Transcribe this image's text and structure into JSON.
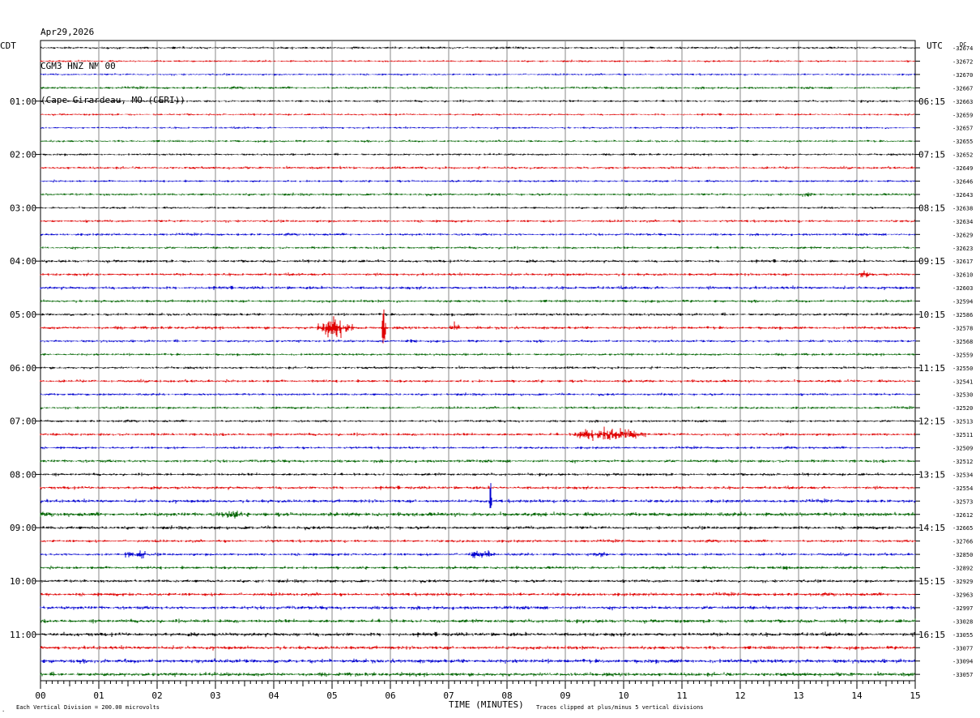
{
  "header": {
    "date": "Apr29,2026",
    "station": "CGM3 HNZ NM 00",
    "location": "(Cape Girardeau, MO (CERI))"
  },
  "left_tz": "CDT",
  "right_tz": "UTC",
  "dc_label": "DC",
  "footer": {
    "scale_note": "Each Vertical Division =  200.00 microvolts",
    "xlabel": "TIME (MINUTES)",
    "clip_note": "Traces clipped at plus/minus 5 vertical divisions"
  },
  "colors": [
    "#000000",
    "#e00000",
    "#0000d0",
    "#006400"
  ],
  "chart_data": {
    "type": "line",
    "xlabel": "TIME (MINUTES)",
    "xlim": [
      0,
      15
    ],
    "x_ticks": [
      "00",
      "01",
      "02",
      "03",
      "04",
      "05",
      "06",
      "07",
      "08",
      "09",
      "10",
      "11",
      "12",
      "13",
      "14",
      "15"
    ],
    "rows_per_hour": 4,
    "left_hour_labels": [
      "01:00",
      "02:00",
      "03:00",
      "04:00",
      "05:00",
      "06:00",
      "07:00",
      "08:00",
      "09:00",
      "10:00",
      "11:00"
    ],
    "right_hour_labels": [
      "06:15",
      "07:15",
      "08:15",
      "09:15",
      "10:15",
      "11:15",
      "12:15",
      "13:15",
      "14:15",
      "15:15",
      "16:15"
    ],
    "dc_offsets": [
      "-32674",
      "-32672",
      "-32670",
      "-32667",
      "-32663",
      "-32659",
      "-32657",
      "-32655",
      "-32652",
      "-32649",
      "-32646",
      "-32643",
      "-32638",
      "-32634",
      "-32629",
      "-32623",
      "-32617",
      "-32610",
      "-32603",
      "-32594",
      "-32586",
      "-32578",
      "-32568",
      "-32559",
      "-32550",
      "-32541",
      "-32530",
      "-32520",
      "-32513",
      "-32511",
      "-32509",
      "-32512",
      "-32534",
      "-32554",
      "-32573",
      "-32612",
      "-32665",
      "-32766",
      "-32850",
      "-32892",
      "-32929",
      "-32963",
      "-32997",
      "-33028",
      "-33055",
      "-33077",
      "-33094",
      "-33057"
    ],
    "noise": [
      0.9,
      0.8,
      0.8,
      1.0,
      0.9,
      0.8,
      0.8,
      0.9,
      0.9,
      1.0,
      0.9,
      1.0,
      0.9,
      1.0,
      1.0,
      1.0,
      1.1,
      1.1,
      1.2,
      1.1,
      1.1,
      1.2,
      1.0,
      1.0,
      1.0,
      1.1,
      1.0,
      1.0,
      1.0,
      1.1,
      1.0,
      1.2,
      1.1,
      1.2,
      1.3,
      1.6,
      1.3,
      1.1,
      1.1,
      1.2,
      1.2,
      1.3,
      1.4,
      1.4,
      1.5,
      1.4,
      1.6,
      1.5
    ],
    "events": [
      {
        "row": 21,
        "start": 4.75,
        "end": 5.35,
        "amp": 12
      },
      {
        "row": 21,
        "start": 5.85,
        "end": 5.92,
        "amp": 38
      },
      {
        "row": 21,
        "start": 7.0,
        "end": 7.2,
        "amp": 6
      },
      {
        "row": 22,
        "start": 6.2,
        "end": 6.5,
        "amp": 3
      },
      {
        "row": 29,
        "start": 9.1,
        "end": 10.4,
        "amp": 8
      },
      {
        "row": 34,
        "start": 7.7,
        "end": 7.74,
        "amp": 30
      },
      {
        "row": 35,
        "start": 3.0,
        "end": 3.5,
        "amp": 5
      },
      {
        "row": 38,
        "start": 1.4,
        "end": 1.9,
        "amp": 5
      },
      {
        "row": 38,
        "start": 7.3,
        "end": 7.8,
        "amp": 5
      },
      {
        "row": 38,
        "start": 9.3,
        "end": 9.8,
        "amp": 3
      },
      {
        "row": 39,
        "start": 12.6,
        "end": 12.9,
        "amp": 4
      },
      {
        "row": 17,
        "start": 14.0,
        "end": 14.3,
        "amp": 4
      },
      {
        "row": 11,
        "start": 13.0,
        "end": 13.3,
        "amp": 3
      }
    ]
  }
}
